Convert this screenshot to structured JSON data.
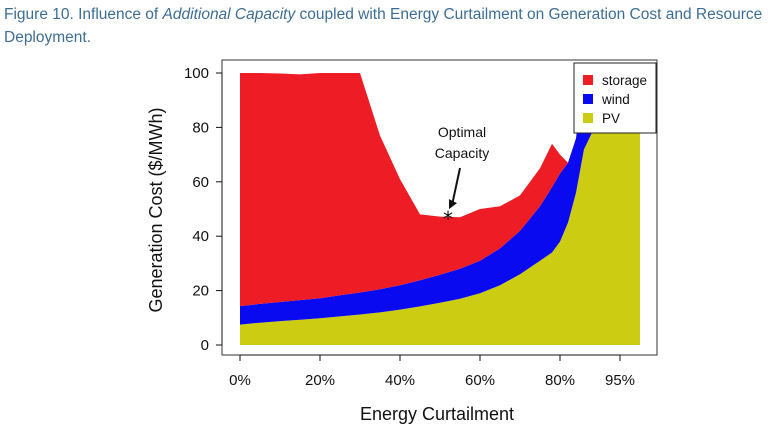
{
  "caption": {
    "prefix": "Figure 10. Influence of ",
    "emphasis": "Additional Capacity",
    "suffix": " coupled with Energy Curtailment on Generation Cost and Resource Deployment."
  },
  "chart_data": {
    "type": "area",
    "stacked": true,
    "xlabel": "Energy Curtailment",
    "ylabel": "Generation Cost ($/MWh)",
    "xlim": [
      0,
      100
    ],
    "ylim": [
      0,
      100
    ],
    "x_ticks": [
      {
        "value": 0,
        "label": "0%"
      },
      {
        "value": 20,
        "label": "20%"
      },
      {
        "value": 40,
        "label": "40%"
      },
      {
        "value": 60,
        "label": "60%"
      },
      {
        "value": 80,
        "label": "80%"
      },
      {
        "value": 95,
        "label": "95%"
      }
    ],
    "y_ticks": [
      0,
      20,
      40,
      60,
      80,
      100
    ],
    "x": [
      0,
      5,
      10,
      15,
      20,
      25,
      30,
      35,
      40,
      45,
      50,
      55,
      60,
      65,
      70,
      75,
      78,
      80,
      82,
      84,
      86,
      88,
      90,
      95,
      100
    ],
    "series": [
      {
        "name": "PV",
        "color": "#cccc13",
        "values": [
          7.5,
          8.2,
          8.8,
          9.3,
          9.8,
          10.5,
          11.2,
          12.0,
          13.0,
          14.2,
          15.5,
          17.0,
          19.0,
          22.0,
          26.0,
          31.0,
          34.0,
          38.0,
          45.0,
          56.0,
          72.0,
          78.0,
          80.0,
          80.0,
          80.0
        ]
      },
      {
        "name": "wind",
        "color": "#0a0af0",
        "values": [
          6.8,
          6.9,
          7.0,
          7.2,
          7.4,
          7.8,
          8.1,
          8.5,
          9.0,
          9.6,
          10.3,
          11.0,
          12.0,
          13.5,
          16.0,
          20.0,
          24.0,
          25.0,
          22.0,
          20.0,
          28.0,
          22.0,
          20.0,
          20.0,
          20.0
        ]
      },
      {
        "name": "storage",
        "color": "#ee1c24",
        "values": [
          86,
          85,
          84,
          83,
          82.8,
          81.7,
          80.7,
          56.5,
          39.0,
          24.2,
          21.4,
          19.0,
          19.0,
          15.5,
          13.0,
          14.0,
          16.0,
          7.0,
          0,
          0,
          0,
          0,
          0,
          0,
          0
        ]
      }
    ],
    "cap": 100,
    "optimum": {
      "x": 52,
      "y": 47
    },
    "annotation": {
      "line1": "Optimal",
      "line2": "Capacity",
      "marker": "*"
    },
    "legend": {
      "position": "top-right",
      "order": [
        "storage",
        "wind",
        "PV"
      ]
    },
    "grid": false
  }
}
